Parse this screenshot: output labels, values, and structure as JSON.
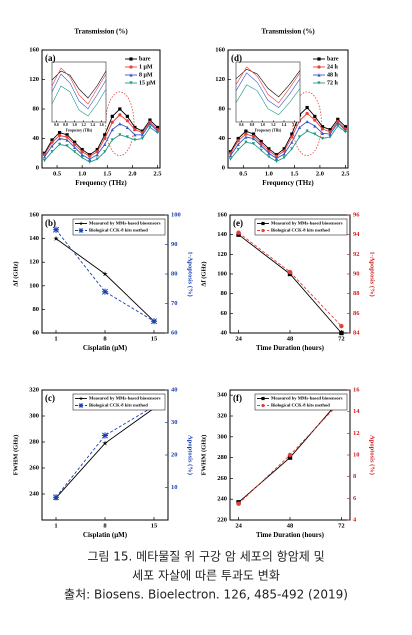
{
  "chart_data": [
    {
      "type": "line",
      "panel_label": "(a)",
      "title": "Transmission (%)",
      "xlabel": "Frequency (THz)",
      "legend": "upper right",
      "x": [
        0.25,
        0.4,
        0.55,
        0.7,
        0.85,
        1.0,
        1.15,
        1.3,
        1.45,
        1.6,
        1.75,
        1.9,
        2.05,
        2.2,
        2.35,
        2.5
      ],
      "xlim": [
        0.2,
        2.55
      ],
      "xticks": [
        0.5,
        {
          "value": 1,
          "label": "1.0"
        },
        1.5,
        {
          "value": 2,
          "label": "2.0"
        },
        2.5
      ],
      "ylim": [
        0,
        160
      ],
      "yticks": [
        0,
        40,
        80,
        120,
        160
      ],
      "series": [
        {
          "name": "bare",
          "color": "#000000",
          "marker": "square",
          "values": [
            20,
            38,
            48,
            45,
            35,
            25,
            18,
            25,
            45,
            70,
            80,
            70,
            55,
            50,
            65,
            55
          ]
        },
        {
          "name": "1 μM",
          "color": "#e8403a",
          "marker": "circle",
          "values": [
            18,
            35,
            44,
            42,
            32,
            22,
            16,
            22,
            40,
            62,
            72,
            64,
            52,
            48,
            62,
            52
          ]
        },
        {
          "name": "8 μM",
          "color": "#3a56c8",
          "marker": "triangle",
          "values": [
            15,
            30,
            40,
            38,
            28,
            18,
            12,
            18,
            32,
            52,
            60,
            55,
            45,
            45,
            60,
            50
          ]
        },
        {
          "name": "15 μM",
          "color": "#1f9a8a",
          "marker": "triangle-down",
          "values": [
            10,
            22,
            32,
            30,
            22,
            14,
            8,
            12,
            22,
            38,
            45,
            42,
            38,
            40,
            55,
            48
          ]
        }
      ],
      "inset": {
        "xlabel": "Frequency (THz)",
        "x": [
          0.5,
          0.7,
          0.9,
          1.1,
          1.3,
          1.5,
          1.7
        ],
        "xlim": [
          0.5,
          1.7
        ],
        "xticks": [
          0.6,
          0.8,
          {
            "value": 1,
            "label": "1.0"
          },
          1.2,
          1.4,
          1.6
        ],
        "ylim": [
          40,
          140
        ],
        "series": [
          {
            "color": "#000000",
            "values": [
              110,
              125,
              118,
              95,
              80,
              100,
              125
            ]
          },
          {
            "color": "#e8403a",
            "values": [
              100,
              130,
              115,
              85,
              70,
              95,
              120
            ]
          },
          {
            "color": "#3a56c8",
            "values": [
              90,
              120,
              105,
              75,
              62,
              85,
              110
            ]
          },
          {
            "color": "#1f9a8a",
            "values": [
              70,
              100,
              90,
              60,
              50,
              70,
              95
            ]
          }
        ]
      }
    },
    {
      "type": "line",
      "panel_label": "(d)",
      "title": "Transmission (%)",
      "xlabel": "Frequency (THz)",
      "legend": "upper right",
      "x": [
        0.25,
        0.4,
        0.55,
        0.7,
        0.85,
        1.0,
        1.15,
        1.3,
        1.45,
        1.6,
        1.75,
        1.9,
        2.05,
        2.2,
        2.35,
        2.5
      ],
      "xlim": [
        0.2,
        2.55
      ],
      "xticks": [
        0.5,
        {
          "value": 1,
          "label": "1.0"
        },
        1.5,
        {
          "value": 2,
          "label": "2.0"
        },
        2.5
      ],
      "ylim": [
        0,
        160
      ],
      "yticks": [
        0,
        40,
        80,
        120,
        160
      ],
      "series": [
        {
          "name": "bare",
          "color": "#000000",
          "marker": "square",
          "values": [
            22,
            40,
            50,
            46,
            36,
            26,
            18,
            26,
            46,
            72,
            82,
            70,
            56,
            52,
            66,
            56
          ]
        },
        {
          "name": "24 h",
          "color": "#e8403a",
          "marker": "circle",
          "values": [
            20,
            37,
            46,
            43,
            33,
            23,
            16,
            23,
            42,
            64,
            74,
            65,
            53,
            49,
            63,
            53
          ]
        },
        {
          "name": "48 h",
          "color": "#3a56c8",
          "marker": "triangle",
          "values": [
            17,
            32,
            42,
            40,
            30,
            20,
            13,
            19,
            35,
            55,
            63,
            57,
            47,
            46,
            61,
            51
          ]
        },
        {
          "name": "72 h",
          "color": "#1f9a8a",
          "marker": "triangle-down",
          "values": [
            12,
            25,
            35,
            33,
            24,
            15,
            9,
            14,
            26,
            42,
            50,
            46,
            40,
            42,
            57,
            49
          ]
        }
      ],
      "inset": {
        "xlabel": "Frequency (THz)",
        "x": [
          0.5,
          0.7,
          0.9,
          1.1,
          1.3,
          1.5,
          1.7
        ],
        "xlim": [
          0.5,
          1.7
        ],
        "xticks": [
          0.6,
          0.8,
          {
            "value": 1,
            "label": "1.0"
          },
          1.2,
          1.4,
          1.6
        ],
        "ylim": [
          40,
          140
        ],
        "series": [
          {
            "color": "#000000",
            "values": [
              112,
              128,
              120,
              96,
              82,
              102,
              126
            ]
          },
          {
            "color": "#e8403a",
            "values": [
              102,
              132,
              116,
              86,
              72,
              96,
              122
            ]
          },
          {
            "color": "#3a56c8",
            "values": [
              92,
              122,
              106,
              76,
              64,
              86,
              112
            ]
          },
          {
            "color": "#1f9a8a",
            "values": [
              72,
              102,
              92,
              62,
              52,
              72,
              96
            ]
          }
        ]
      }
    },
    {
      "type": "line",
      "panel_label": "(b)",
      "xlabel": "Cisplatin (μM)",
      "ylabel": "Δf (GHz)",
      "y2label": "1-Apoptosis (%)",
      "y2_color": "#1a3fb0",
      "legend": "upper right",
      "x": [
        1,
        8,
        15
      ],
      "xlim": [
        -1,
        17
      ],
      "xticks": [
        1,
        8,
        15
      ],
      "ylim": [
        60,
        160
      ],
      "yticks": [
        60,
        80,
        100,
        120,
        140,
        160
      ],
      "y2lim": [
        60,
        100
      ],
      "y2ticks": [
        60,
        70,
        80,
        90,
        100
      ],
      "series": [
        {
          "name": "Measured by MMs-based biosensors",
          "color": "#000000",
          "marker": "star",
          "values": [
            140,
            110,
            70
          ]
        },
        {
          "name": "Biological CCK-8 kits method",
          "color": "#1a3fb0",
          "marker": "x",
          "dash": true,
          "axis": "y2",
          "values": [
            95,
            74,
            64
          ]
        }
      ]
    },
    {
      "type": "line",
      "panel_label": "(e)",
      "xlabel": "Time Duration (hours)",
      "ylabel": "Δf (GHz)",
      "y2label": "1-Apoptosis (%)",
      "y2_color": "#d42020",
      "legend": "upper right",
      "x": [
        24,
        48,
        72
      ],
      "xlim": [
        20,
        76
      ],
      "xticks": [
        24,
        48,
        72
      ],
      "ylim": [
        40,
        160
      ],
      "yticks": [
        40,
        60,
        80,
        100,
        120,
        140,
        160
      ],
      "y2lim": [
        84,
        96
      ],
      "y2ticks": [
        84,
        86,
        88,
        90,
        92,
        94,
        96
      ],
      "series": [
        {
          "name": "Measured by MMs-based biosensors",
          "color": "#000000",
          "marker": "square",
          "values": [
            140,
            100,
            40
          ]
        },
        {
          "name": "Biological CCK-8 kits method",
          "color": "#e8403a",
          "marker": "circle",
          "dash": true,
          "axis": "y2",
          "values": [
            94.2,
            90.2,
            84.7
          ]
        }
      ]
    },
    {
      "type": "line",
      "panel_label": "(c)",
      "xlabel": "Cisplatin (μM)",
      "ylabel": "FWHM (GHz)",
      "y2label": "Apoptosis (%)",
      "y2_color": "#1a3fb0",
      "legend": "upper right",
      "x": [
        1,
        8,
        15
      ],
      "xlim": [
        -1,
        17
      ],
      "xticks": [
        1,
        8,
        15
      ],
      "ylim": [
        220,
        320
      ],
      "yticks": [
        240,
        260,
        280,
        300,
        320
      ],
      "y2lim": [
        0,
        40
      ],
      "y2ticks": [
        10,
        20,
        30,
        40
      ],
      "series": [
        {
          "name": "Measured by MMs-based biosensors",
          "color": "#000000",
          "marker": "star",
          "values": [
            237,
            279,
            306
          ]
        },
        {
          "name": "Biological CCK-8 kits method",
          "color": "#1a3fb0",
          "marker": "x",
          "dash": true,
          "axis": "y2",
          "values": [
            7,
            26,
            35
          ]
        }
      ]
    },
    {
      "type": "line",
      "panel_label": "(f)",
      "xlabel": "Time Duration (hours)",
      "ylabel": "FWHM (GHz)",
      "y2label": "Apoptosis (%)",
      "y2_color": "#d42020",
      "legend": "upper right",
      "x": [
        24,
        48,
        72
      ],
      "xlim": [
        20,
        76
      ],
      "xticks": [
        24,
        48,
        72
      ],
      "ylim": [
        220,
        345
      ],
      "yticks": [
        220,
        240,
        260,
        280,
        300,
        320,
        340
      ],
      "y2lim": [
        4,
        16
      ],
      "y2ticks": [
        4,
        6,
        8,
        10,
        12,
        14,
        16
      ],
      "series": [
        {
          "name": "Measured by MMs-based biosensors",
          "color": "#000000",
          "marker": "square",
          "values": [
            237,
            280,
            337
          ]
        },
        {
          "name": "Biological CCK-8 kits method",
          "color": "#e8403a",
          "marker": "circle",
          "dash": true,
          "axis": "y2",
          "values": [
            5.5,
            10,
            15
          ]
        }
      ]
    }
  ],
  "caption": [
    "그림 15. 메타물질 위 구강 암 세포의 항암제 및",
    "세포 자살에 따른 투과도 변화",
    "출처: Biosens. Bioelectron. 126, 485-492 (2019)"
  ]
}
